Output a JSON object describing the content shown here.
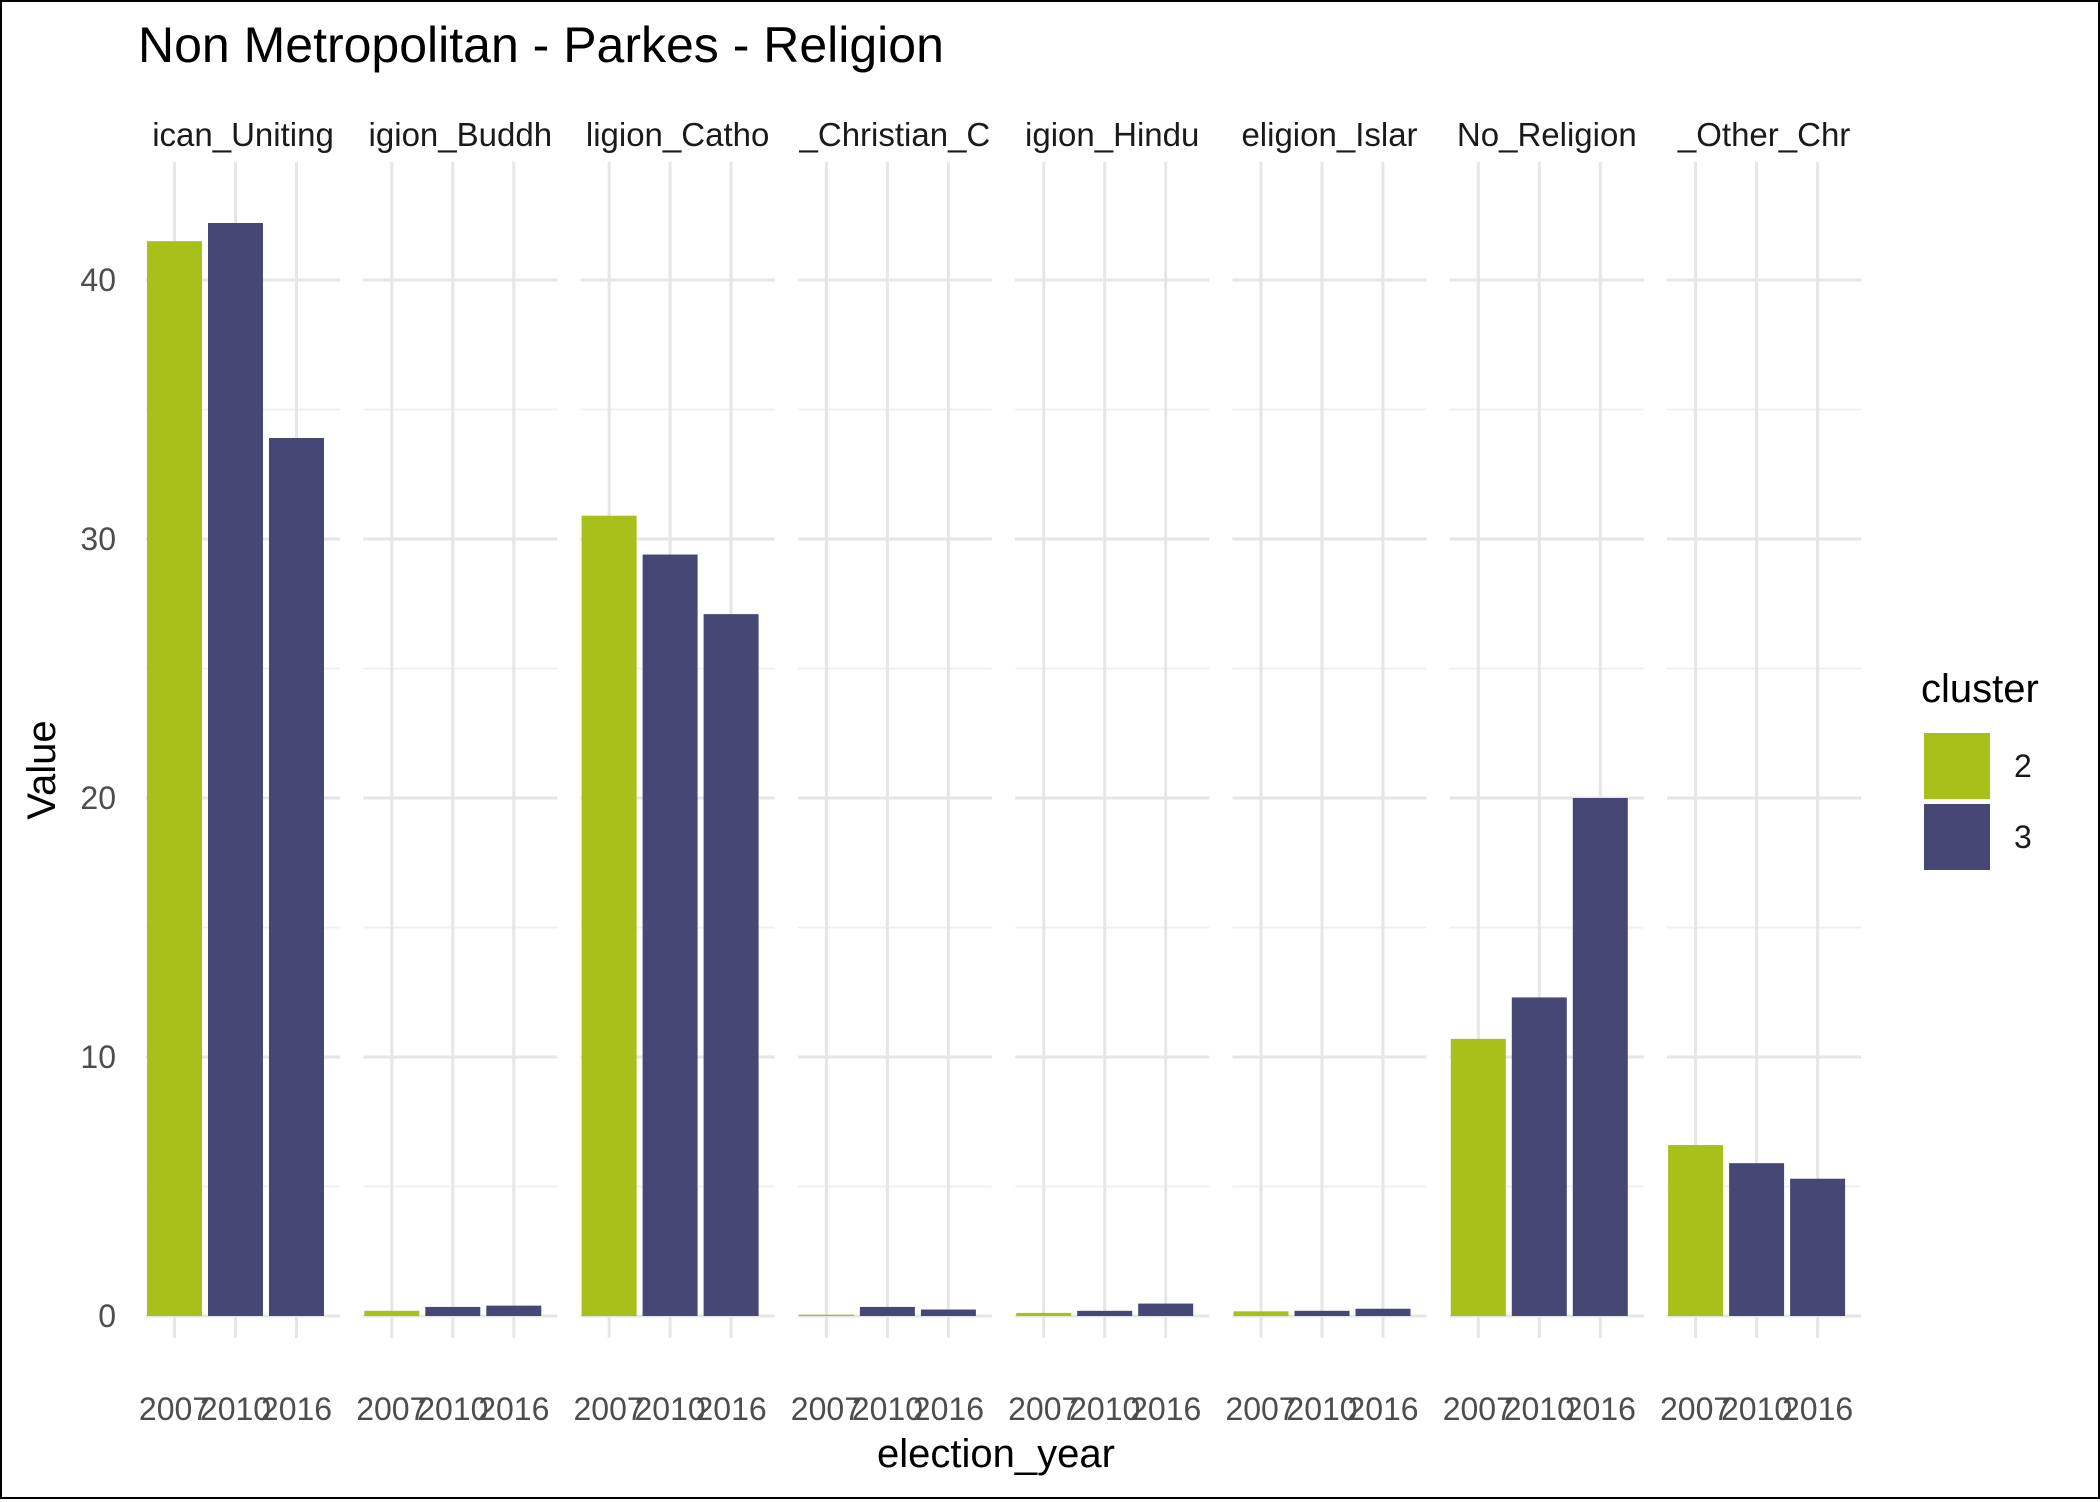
{
  "chart_data": {
    "type": "bar",
    "title": "Non Metropolitan - Parkes - Religion",
    "xlabel": "election_year",
    "ylabel": "Value",
    "ylim": [
      0,
      44
    ],
    "y_ticks": [
      0,
      10,
      20,
      30,
      40
    ],
    "grid": true,
    "facet_strip_labels": [
      "ican_Uniting",
      "igion_Buddh",
      "ligion_Catho",
      "_Christian_C",
      "igion_Hindu",
      "eligion_Islar",
      "No_Religion",
      "_Other_Chr"
    ],
    "categories": [
      "2007",
      "2010",
      "2016"
    ],
    "x_tick_labels": [
      "2007",
      "2010",
      "2016"
    ],
    "facets": [
      {
        "values": [
          41.5,
          42.2,
          33.9
        ],
        "clusters": [
          "2",
          "3",
          "3"
        ]
      },
      {
        "values": [
          0.2,
          0.35,
          0.4
        ],
        "clusters": [
          "2",
          "3",
          "3"
        ]
      },
      {
        "values": [
          30.9,
          29.4,
          27.1
        ],
        "clusters": [
          "2",
          "3",
          "3"
        ]
      },
      {
        "values": [
          0.05,
          0.35,
          0.25
        ],
        "clusters": [
          "2",
          "3",
          "3"
        ]
      },
      {
        "values": [
          0.12,
          0.2,
          0.48
        ],
        "clusters": [
          "2",
          "3",
          "3"
        ]
      },
      {
        "values": [
          0.18,
          0.2,
          0.28
        ],
        "clusters": [
          "2",
          "3",
          "3"
        ]
      },
      {
        "values": [
          10.7,
          12.3,
          20.0
        ],
        "clusters": [
          "2",
          "3",
          "3"
        ]
      },
      {
        "values": [
          6.6,
          5.9,
          5.3
        ],
        "clusters": [
          "2",
          "3",
          "3"
        ]
      }
    ],
    "legend": {
      "title": "cluster",
      "position": "right",
      "entries": [
        {
          "label": "2",
          "color": "#a8c01a"
        },
        {
          "label": "3",
          "color": "#464775"
        }
      ]
    }
  }
}
